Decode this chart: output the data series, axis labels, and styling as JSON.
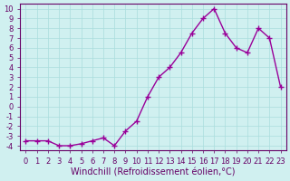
{
  "xlabel": "Windchill (Refroidissement éolien,°C)",
  "x_values": [
    0,
    1,
    2,
    3,
    4,
    5,
    6,
    7,
    8,
    9,
    10,
    11,
    12,
    13,
    14,
    15,
    16,
    17,
    18,
    19,
    20,
    21,
    22,
    23
  ],
  "y_values": [
    -3.5,
    -3.5,
    -3.5,
    -4.0,
    -4.0,
    -3.8,
    -3.5,
    -3.2,
    -4.0,
    -2.5,
    -1.5,
    1.0,
    3.0,
    4.0,
    5.5,
    7.5,
    9.0,
    10.0,
    7.5,
    6.0,
    5.5,
    8.0,
    7.0,
    2.0
  ],
  "line_color": "#990099",
  "marker": "+",
  "marker_size": 5,
  "background_color": "#d0f0f0",
  "grid_color": "#aadddd",
  "ylim": [
    -4,
    10
  ],
  "xlim": [
    0,
    23
  ],
  "ytick_step": 1,
  "xtick_step": 1,
  "tick_fontsize": 6,
  "label_fontsize": 7,
  "spine_color": "#660066"
}
